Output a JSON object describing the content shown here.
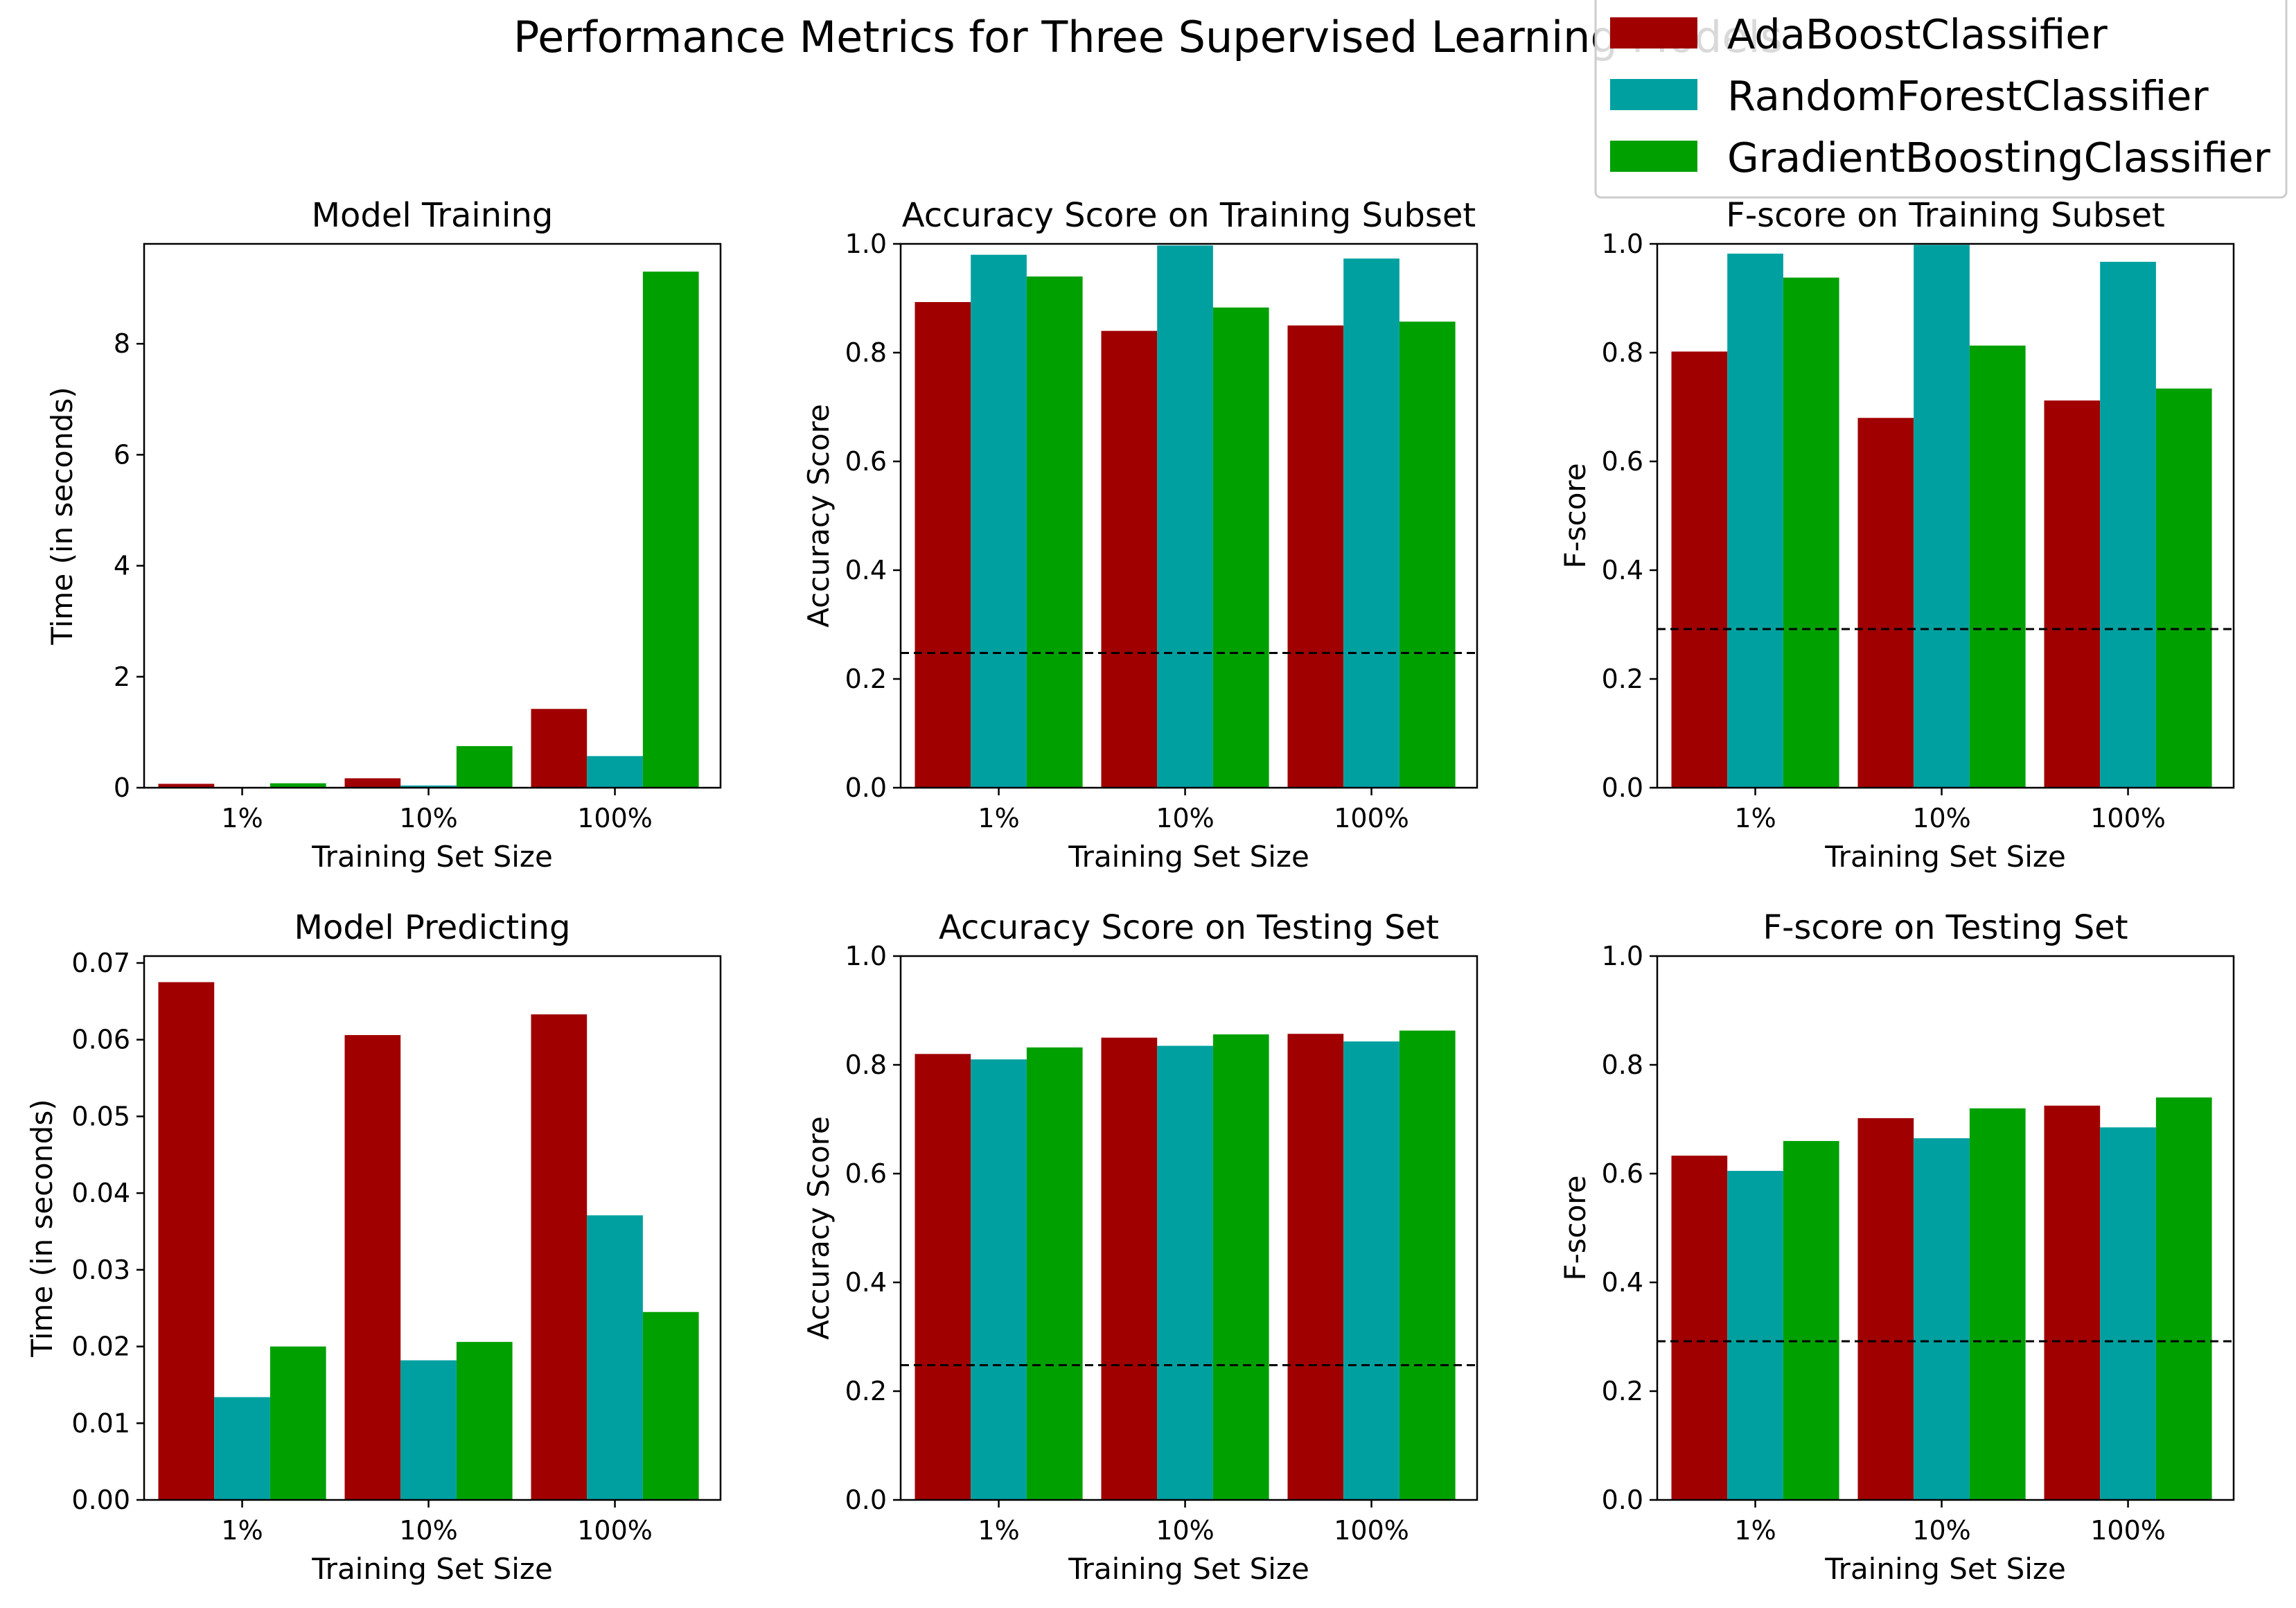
{
  "figure": {
    "title": "Performance Metrics for Three Supervised Learning Models"
  },
  "colors": {
    "AdaBoostClassifier": "#a00000",
    "RandomForestClassifier": "#00a0a0",
    "GradientBoostingClassifier": "#00a000"
  },
  "legend": {
    "placement": "top-right",
    "entries": [
      "AdaBoostClassifier",
      "RandomForestClassifier",
      "GradientBoostingClassifier"
    ]
  },
  "chart_data": [
    {
      "type": "bar",
      "title": "Model Training",
      "xlabel": "Training Set Size",
      "ylabel": "Time (in seconds)",
      "categories": [
        "1%",
        "10%",
        "100%"
      ],
      "ylim": [
        0,
        9.8
      ],
      "yticks": [
        "0",
        "2",
        "4",
        "6",
        "8"
      ],
      "ytick_values": [
        0,
        2,
        4,
        6,
        8
      ],
      "baseline": null,
      "series": [
        {
          "name": "AdaBoostClassifier",
          "values": [
            0.07,
            0.17,
            1.42
          ]
        },
        {
          "name": "RandomForestClassifier",
          "values": [
            0.01,
            0.04,
            0.57
          ]
        },
        {
          "name": "GradientBoostingClassifier",
          "values": [
            0.08,
            0.75,
            9.3
          ]
        }
      ]
    },
    {
      "type": "bar",
      "title": "Accuracy Score on Training Subset",
      "xlabel": "Training Set Size",
      "ylabel": "Accuracy Score",
      "categories": [
        "1%",
        "10%",
        "100%"
      ],
      "ylim": [
        0,
        1.0
      ],
      "yticks": [
        "0.0",
        "0.2",
        "0.4",
        "0.6",
        "0.8",
        "1.0"
      ],
      "ytick_values": [
        0,
        0.2,
        0.4,
        0.6,
        0.8,
        1.0
      ],
      "baseline": 0.2478,
      "series": [
        {
          "name": "AdaBoostClassifier",
          "values": [
            0.893,
            0.84,
            0.85
          ]
        },
        {
          "name": "RandomForestClassifier",
          "values": [
            0.98,
            0.997,
            0.973
          ]
        },
        {
          "name": "GradientBoostingClassifier",
          "values": [
            0.94,
            0.883,
            0.857
          ]
        }
      ]
    },
    {
      "type": "bar",
      "title": "F-score on Training Subset",
      "xlabel": "Training Set Size",
      "ylabel": "F-score",
      "categories": [
        "1%",
        "10%",
        "100%"
      ],
      "ylim": [
        0,
        1.0
      ],
      "yticks": [
        "0.0",
        "0.2",
        "0.4",
        "0.6",
        "0.8",
        "1.0"
      ],
      "ytick_values": [
        0,
        0.2,
        0.4,
        0.6,
        0.8,
        1.0
      ],
      "baseline": 0.2917,
      "series": [
        {
          "name": "AdaBoostClassifier",
          "values": [
            0.802,
            0.68,
            0.712
          ]
        },
        {
          "name": "RandomForestClassifier",
          "values": [
            0.982,
            0.998,
            0.967
          ]
        },
        {
          "name": "GradientBoostingClassifier",
          "values": [
            0.938,
            0.813,
            0.734
          ]
        }
      ]
    },
    {
      "type": "bar",
      "title": "Model Predicting",
      "xlabel": "Training Set Size",
      "ylabel": "Time (in seconds)",
      "categories": [
        "1%",
        "10%",
        "100%"
      ],
      "ylim": [
        0,
        0.0709
      ],
      "yticks": [
        "0.00",
        "0.01",
        "0.02",
        "0.03",
        "0.04",
        "0.05",
        "0.06",
        "0.07"
      ],
      "ytick_values": [
        0,
        0.01,
        0.02,
        0.03,
        0.04,
        0.05,
        0.06,
        0.07
      ],
      "baseline": null,
      "series": [
        {
          "name": "AdaBoostClassifier",
          "values": [
            0.0675,
            0.0606,
            0.0633
          ]
        },
        {
          "name": "RandomForestClassifier",
          "values": [
            0.0134,
            0.0182,
            0.0371
          ]
        },
        {
          "name": "GradientBoostingClassifier",
          "values": [
            0.02,
            0.0206,
            0.0245
          ]
        }
      ]
    },
    {
      "type": "bar",
      "title": "Accuracy Score on Testing Set",
      "xlabel": "Training Set Size",
      "ylabel": "Accuracy Score",
      "categories": [
        "1%",
        "10%",
        "100%"
      ],
      "ylim": [
        0,
        1.0
      ],
      "yticks": [
        "0.0",
        "0.2",
        "0.4",
        "0.6",
        "0.8",
        "1.0"
      ],
      "ytick_values": [
        0,
        0.2,
        0.4,
        0.6,
        0.8,
        1.0
      ],
      "baseline": 0.2478,
      "series": [
        {
          "name": "AdaBoostClassifier",
          "values": [
            0.82,
            0.85,
            0.857
          ]
        },
        {
          "name": "RandomForestClassifier",
          "values": [
            0.81,
            0.835,
            0.843
          ]
        },
        {
          "name": "GradientBoostingClassifier",
          "values": [
            0.832,
            0.856,
            0.863
          ]
        }
      ]
    },
    {
      "type": "bar",
      "title": "F-score on Testing Set",
      "xlabel": "Training Set Size",
      "ylabel": "F-score",
      "categories": [
        "1%",
        "10%",
        "100%"
      ],
      "ylim": [
        0,
        1.0
      ],
      "yticks": [
        "0.0",
        "0.2",
        "0.4",
        "0.6",
        "0.8",
        "1.0"
      ],
      "ytick_values": [
        0,
        0.2,
        0.4,
        0.6,
        0.8,
        1.0
      ],
      "baseline": 0.2917,
      "series": [
        {
          "name": "AdaBoostClassifier",
          "values": [
            0.633,
            0.702,
            0.725
          ]
        },
        {
          "name": "RandomForestClassifier",
          "values": [
            0.605,
            0.665,
            0.685
          ]
        },
        {
          "name": "GradientBoostingClassifier",
          "values": [
            0.66,
            0.72,
            0.74
          ]
        }
      ]
    }
  ]
}
